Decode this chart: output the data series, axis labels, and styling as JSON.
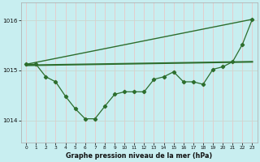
{
  "title": "Graphe pression niveau de la mer (hPa)",
  "bg_color": "#c8eef0",
  "grid_color_v": "#e8c8c8",
  "grid_color_h": "#c8d8d0",
  "line_color": "#2d6e2d",
  "x_labels": [
    "0",
    "1",
    "2",
    "3",
    "4",
    "5",
    "6",
    "7",
    "8",
    "9",
    "10",
    "11",
    "12",
    "13",
    "14",
    "15",
    "16",
    "17",
    "18",
    "19",
    "20",
    "21",
    "22",
    "23"
  ],
  "y_ticks": [
    1014,
    1015,
    1016
  ],
  "ylim": [
    1013.55,
    1016.35
  ],
  "xlim": [
    -0.5,
    23.5
  ],
  "pressure_data": [
    1015.12,
    1015.12,
    1014.87,
    1014.77,
    1014.48,
    1014.23,
    1014.03,
    1014.03,
    1014.28,
    1014.52,
    1014.57,
    1014.57,
    1014.57,
    1014.82,
    1014.87,
    1014.97,
    1014.77,
    1014.77,
    1014.72,
    1015.02,
    1015.07,
    1015.17,
    1015.52,
    1016.02
  ],
  "trend_line_x": [
    0,
    23
  ],
  "trend_line_y": [
    1015.12,
    1016.02
  ],
  "mean_line_x": [
    0,
    23
  ],
  "mean_line_y": [
    1015.1,
    1015.17
  ]
}
